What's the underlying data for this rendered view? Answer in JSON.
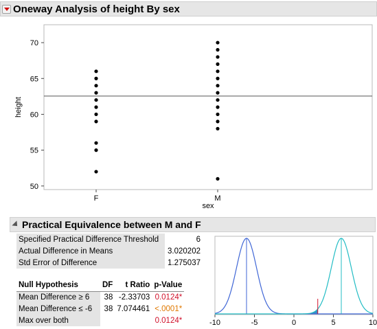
{
  "report": {
    "title": "Oneway Analysis of height By sex"
  },
  "chart_data": [
    {
      "type": "scatter",
      "title": "",
      "xlabel": "sex",
      "ylabel": "height",
      "categories": [
        "F",
        "M"
      ],
      "ylim": [
        49.5,
        72.5
      ],
      "yticks": [
        50,
        55,
        60,
        65,
        70
      ],
      "grand_mean": 62.55,
      "series": [
        {
          "category": "F",
          "values": [
            52,
            55,
            56,
            59,
            60,
            61,
            62,
            63,
            64,
            65,
            66
          ]
        },
        {
          "category": "M",
          "values": [
            51,
            58,
            59,
            60,
            61,
            62,
            63,
            64,
            65,
            66,
            67,
            68,
            69,
            70
          ]
        }
      ],
      "grid": false
    },
    {
      "type": "line",
      "title": "",
      "xlim": [
        -10,
        10
      ],
      "xticks": [
        -10,
        -5,
        0,
        5,
        10
      ],
      "curves": [
        {
          "center": -6,
          "sd": 1.275037,
          "color": "#3f66d6"
        },
        {
          "center": 6,
          "sd": 1.275037,
          "color": "#22bcc4"
        }
      ],
      "observed_difference": 3.020202,
      "grid": false
    }
  ],
  "equivalence": {
    "title": "Practical Equivalence between M and F",
    "info_rows": [
      {
        "label": "Specified Practical Difference Threshold",
        "value": "6"
      },
      {
        "label": "Actual Difference in Means",
        "value": "3.020202"
      },
      {
        "label": "Std Error of Difference",
        "value": "1.275037"
      }
    ],
    "columns": [
      "Null Hypothesis",
      "DF",
      "t Ratio",
      "p-Value"
    ],
    "rows": [
      {
        "hypothesis": "Mean Difference ≥ 6",
        "df": "38",
        "t_ratio": "-2.33703",
        "p_value": "0.0124*",
        "p_color": "#d0102a"
      },
      {
        "hypothesis": "Mean Difference ≤ -6",
        "df": "38",
        "t_ratio": "7.074461",
        "p_value": "<.0001*",
        "p_color": "#e07800"
      },
      {
        "hypothesis": "Max over both",
        "df": "",
        "t_ratio": "",
        "p_value": "0.0124*",
        "p_color": "#d0102a"
      }
    ]
  }
}
